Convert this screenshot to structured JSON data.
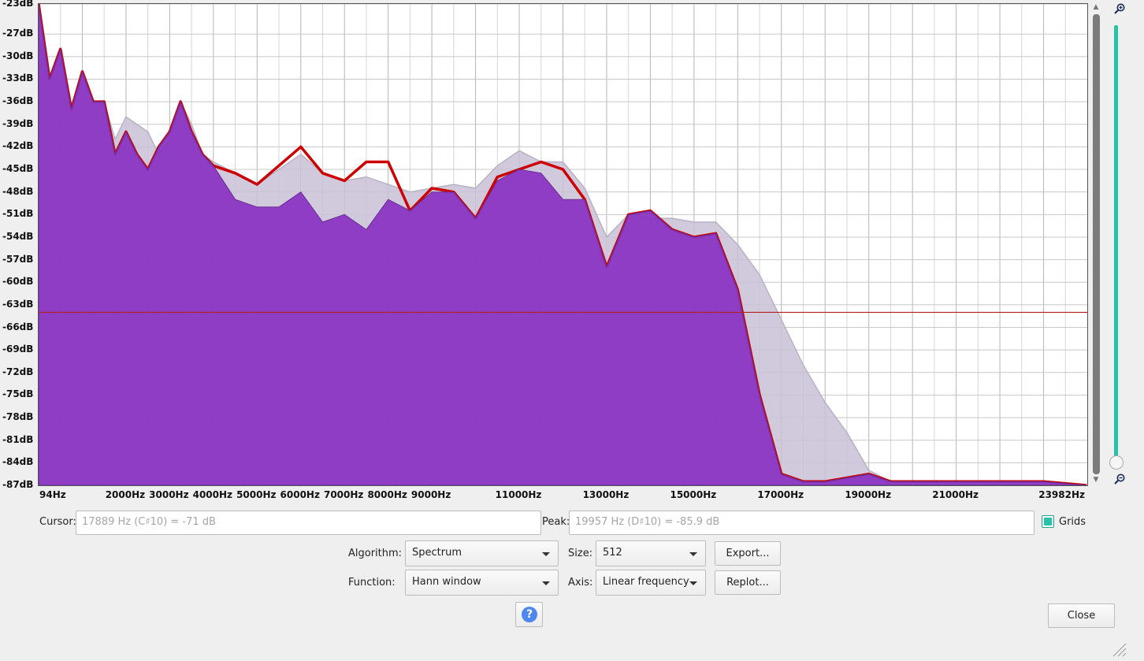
{
  "chart_data": {
    "type": "area",
    "xlabel": "",
    "ylabel": "",
    "x_scale": "linear frequency",
    "xlim": [
      0,
      24000
    ],
    "ylim": [
      -87,
      -23
    ],
    "x_ticks": [
      "94Hz",
      "2000Hz",
      "3000Hz",
      "4000Hz",
      "5000Hz",
      "6000Hz",
      "7000Hz",
      "8000Hz",
      "9000Hz",
      "11000Hz",
      "13000Hz",
      "15000Hz",
      "17000Hz",
      "19000Hz",
      "21000Hz",
      "23982Hz"
    ],
    "x_tick_values": [
      94,
      2000,
      3000,
      4000,
      5000,
      6000,
      7000,
      8000,
      9000,
      11000,
      13000,
      15000,
      17000,
      19000,
      21000,
      23982
    ],
    "y_ticks": [
      "-23dB",
      "-27dB",
      "-30dB",
      "-33dB",
      "-36dB",
      "-39dB",
      "-42dB",
      "-45dB",
      "-48dB",
      "-51dB",
      "-54dB",
      "-57dB",
      "-60dB",
      "-63dB",
      "-66dB",
      "-69dB",
      "-72dB",
      "-75dB",
      "-78dB",
      "-81dB",
      "-84dB",
      "-87dB"
    ],
    "y_tick_values": [
      -23,
      -27,
      -30,
      -33,
      -36,
      -39,
      -42,
      -45,
      -48,
      -51,
      -54,
      -57,
      -60,
      -63,
      -66,
      -69,
      -72,
      -75,
      -78,
      -81,
      -84,
      -87
    ],
    "grid": true,
    "series": [
      {
        "name": "",
        "color": "#c9c0d6",
        "x": [
          0,
          250,
          500,
          750,
          1000,
          1250,
          1500,
          1750,
          2000,
          2250,
          2500,
          2750,
          3000,
          3250,
          3500,
          3750,
          4000,
          4500,
          5000,
          5500,
          6000,
          6500,
          7000,
          7500,
          8000,
          8500,
          9000,
          9500,
          10000,
          10500,
          11000,
          11500,
          12000,
          12500,
          13000,
          13500,
          14000,
          14500,
          15000,
          15500,
          16000,
          16500,
          17000,
          17500,
          18000,
          18500,
          19000,
          19500,
          20000,
          21000,
          22000,
          23000,
          23982
        ],
        "y": [
          -27,
          -33,
          -29,
          -37,
          -32,
          -36,
          -36,
          -41,
          -38,
          -39,
          -40,
          -43,
          -41,
          -36,
          -39,
          -43,
          -44,
          -45.5,
          -47,
          -45,
          -43,
          -45.5,
          -46.5,
          -46,
          -47,
          -48,
          -47.5,
          -47,
          -47.5,
          -44.5,
          -42.5,
          -44,
          -44,
          -47.5,
          -54,
          -51,
          -51.5,
          -51.5,
          -52,
          -52,
          -55,
          -59,
          -65,
          -71,
          -76,
          -80,
          -85,
          -86.5,
          -87,
          -87,
          -87,
          -87,
          -87
        ]
      },
      {
        "name": "",
        "color": "#cc0000",
        "x": [
          0,
          250,
          500,
          750,
          1000,
          1250,
          1500,
          1750,
          2000,
          2250,
          2500,
          2750,
          3000,
          3250,
          3500,
          3750,
          4000,
          4500,
          5000,
          5500,
          6000,
          6500,
          7000,
          7500,
          8000,
          8500,
          9000,
          9500,
          10000,
          10500,
          11000,
          11500,
          12000,
          12500,
          13000,
          13500,
          14000,
          14500,
          15000,
          15500,
          16000,
          16500,
          17000,
          17500,
          18000,
          18500,
          19000,
          19500,
          20000,
          21000,
          22000,
          23000,
          23982
        ],
        "y": [
          -23,
          -33,
          -29,
          -37,
          -32,
          -36,
          -36,
          -43,
          -40,
          -43,
          -45,
          -42,
          -40,
          -36,
          -40,
          -43,
          -44.5,
          -45.5,
          -47,
          -44.5,
          -42,
          -45.5,
          -46.5,
          -44,
          -44,
          -50.5,
          -47.5,
          -48,
          -51.5,
          -46,
          -45,
          -44,
          -45,
          -49,
          -58,
          -51,
          -50.5,
          -53,
          -54,
          -53.5,
          -61,
          -75,
          -85.5,
          -86.5,
          -86.5,
          -86,
          -85.5,
          -86.5,
          -86.5,
          -86.5,
          -86.5,
          -86.5,
          -87
        ]
      },
      {
        "name": "",
        "color": "#8a36c2",
        "x": [
          0,
          250,
          500,
          750,
          1000,
          1250,
          1500,
          1750,
          2000,
          2250,
          2500,
          2750,
          3000,
          3250,
          3500,
          3750,
          4000,
          4500,
          5000,
          5500,
          6000,
          6500,
          7000,
          7500,
          8000,
          8500,
          9000,
          9500,
          10000,
          10500,
          11000,
          11500,
          12000,
          12500,
          13000,
          13500,
          14000,
          14500,
          15000,
          15500,
          16000,
          16500,
          17000,
          17500,
          18000,
          18500,
          19000,
          19500,
          20000,
          21000,
          22000,
          23000,
          23982
        ],
        "y": [
          -23,
          -33,
          -29,
          -37,
          -32,
          -36,
          -36,
          -43,
          -40,
          -43,
          -45,
          -42,
          -40,
          -36,
          -40,
          -43,
          -44.5,
          -49,
          -50,
          -50,
          -48,
          -52,
          -51,
          -53,
          -49,
          -50.5,
          -48,
          -48,
          -51.5,
          -46.5,
          -45,
          -45.5,
          -49,
          -49,
          -58,
          -51,
          -50.5,
          -53,
          -54,
          -53.5,
          -61,
          -75,
          -85.5,
          -86.5,
          -86.5,
          -86,
          -85.5,
          -86.5,
          -86.5,
          -86.5,
          -86.5,
          -86.5,
          -87
        ]
      }
    ],
    "cursor_level_db": -64
  },
  "controls": {
    "cursor_label": "Cursor:",
    "cursor_value": "17889 Hz (C♯10) = -71 dB",
    "peak_label": "Peak:",
    "peak_value": "19957 Hz (D♯10) = -85.9 dB",
    "grids_label": "Grids",
    "grids_checked": true,
    "algorithm_label": "Algorithm:",
    "algorithm_value": "Spectrum",
    "size_label": "Size:",
    "size_value": "512",
    "export_label": "Export...",
    "function_label": "Function:",
    "function_value": "Hann window",
    "axis_label": "Axis:",
    "axis_value": "Linear frequency",
    "replot_label": "Replot...",
    "close_label": "Close",
    "help_glyph": "?"
  }
}
